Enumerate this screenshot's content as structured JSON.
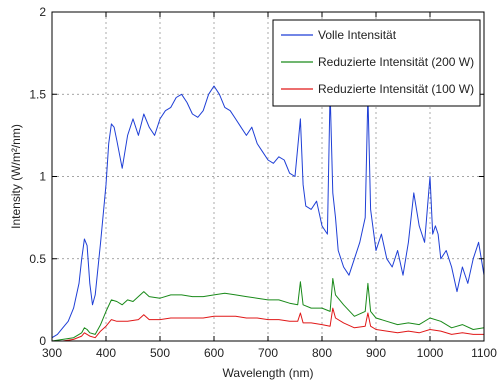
{
  "chart_data": {
    "type": "line",
    "title": "",
    "xlabel": "Wavelength (nm)",
    "ylabel": "Intensity (W/m²/nm)",
    "xlim": [
      300,
      1100
    ],
    "ylim": [
      0,
      2
    ],
    "x_ticks": [
      300,
      400,
      500,
      600,
      700,
      800,
      900,
      1000,
      1100
    ],
    "y_ticks": [
      0,
      0.5,
      1,
      1.5,
      2
    ],
    "y_tick_labels": [
      "0",
      "0.5",
      "1",
      "1.5",
      "2"
    ],
    "grid": true,
    "legend_position": "top-right",
    "series": [
      {
        "name": "Volle Intensität",
        "color": "#1f3fd6",
        "x": [
          300,
          310,
          320,
          330,
          340,
          350,
          355,
          360,
          365,
          370,
          375,
          380,
          390,
          400,
          405,
          410,
          415,
          420,
          430,
          440,
          450,
          460,
          470,
          480,
          490,
          500,
          510,
          520,
          530,
          540,
          550,
          560,
          570,
          580,
          590,
          600,
          610,
          620,
          630,
          640,
          650,
          660,
          670,
          680,
          690,
          700,
          710,
          720,
          730,
          740,
          750,
          760,
          765,
          770,
          780,
          790,
          800,
          810,
          815,
          820,
          825,
          830,
          840,
          850,
          860,
          870,
          880,
          885,
          890,
          900,
          910,
          920,
          930,
          940,
          950,
          960,
          970,
          980,
          990,
          1000,
          1005,
          1010,
          1015,
          1020,
          1030,
          1040,
          1050,
          1060,
          1070,
          1080,
          1090,
          1100
        ],
        "y": [
          0.02,
          0.04,
          0.08,
          0.12,
          0.2,
          0.35,
          0.5,
          0.62,
          0.58,
          0.35,
          0.22,
          0.28,
          0.6,
          0.95,
          1.2,
          1.32,
          1.3,
          1.22,
          1.05,
          1.25,
          1.35,
          1.25,
          1.38,
          1.3,
          1.25,
          1.35,
          1.4,
          1.42,
          1.48,
          1.5,
          1.45,
          1.38,
          1.36,
          1.4,
          1.5,
          1.55,
          1.5,
          1.42,
          1.4,
          1.35,
          1.3,
          1.25,
          1.3,
          1.2,
          1.15,
          1.1,
          1.08,
          1.12,
          1.1,
          1.02,
          1.0,
          1.35,
          0.95,
          0.82,
          0.8,
          0.85,
          0.7,
          0.65,
          1.52,
          0.9,
          0.75,
          0.55,
          0.45,
          0.4,
          0.5,
          0.6,
          0.75,
          1.5,
          0.8,
          0.55,
          0.65,
          0.5,
          0.45,
          0.55,
          0.4,
          0.6,
          0.9,
          0.7,
          0.6,
          1.0,
          0.65,
          0.7,
          0.65,
          0.5,
          0.55,
          0.45,
          0.3,
          0.45,
          0.35,
          0.5,
          0.6,
          0.4
        ]
      },
      {
        "name": "Reduzierte Intensität (200 W)",
        "color": "#1a8a1a",
        "x": [
          300,
          320,
          340,
          355,
          360,
          365,
          370,
          380,
          390,
          400,
          410,
          420,
          430,
          440,
          450,
          470,
          480,
          500,
          520,
          540,
          560,
          580,
          600,
          620,
          640,
          660,
          680,
          700,
          720,
          740,
          755,
          760,
          765,
          780,
          800,
          815,
          820,
          825,
          840,
          860,
          880,
          885,
          890,
          900,
          920,
          940,
          960,
          980,
          1000,
          1020,
          1040,
          1060,
          1080,
          1100
        ],
        "y": [
          0.0,
          0.01,
          0.02,
          0.05,
          0.08,
          0.07,
          0.05,
          0.04,
          0.1,
          0.18,
          0.25,
          0.24,
          0.22,
          0.25,
          0.24,
          0.3,
          0.27,
          0.26,
          0.28,
          0.28,
          0.27,
          0.27,
          0.28,
          0.29,
          0.28,
          0.27,
          0.26,
          0.25,
          0.25,
          0.23,
          0.22,
          0.36,
          0.22,
          0.2,
          0.2,
          0.18,
          0.38,
          0.28,
          0.22,
          0.15,
          0.18,
          0.35,
          0.18,
          0.14,
          0.12,
          0.1,
          0.11,
          0.1,
          0.14,
          0.12,
          0.08,
          0.1,
          0.07,
          0.08
        ]
      },
      {
        "name": "Reduzierte Intensität (100 W)",
        "color": "#e01818",
        "x": [
          300,
          320,
          340,
          355,
          360,
          365,
          370,
          380,
          390,
          400,
          410,
          420,
          440,
          460,
          470,
          480,
          500,
          520,
          540,
          560,
          580,
          600,
          620,
          640,
          660,
          680,
          700,
          720,
          740,
          755,
          760,
          765,
          780,
          800,
          815,
          820,
          825,
          840,
          860,
          880,
          885,
          890,
          900,
          920,
          940,
          960,
          980,
          1000,
          1020,
          1040,
          1060,
          1080,
          1100
        ],
        "y": [
          0.0,
          0.0,
          0.01,
          0.03,
          0.05,
          0.04,
          0.03,
          0.02,
          0.06,
          0.09,
          0.13,
          0.12,
          0.12,
          0.13,
          0.16,
          0.13,
          0.13,
          0.14,
          0.14,
          0.14,
          0.14,
          0.15,
          0.15,
          0.15,
          0.14,
          0.14,
          0.13,
          0.13,
          0.12,
          0.12,
          0.17,
          0.11,
          0.11,
          0.1,
          0.09,
          0.2,
          0.14,
          0.11,
          0.08,
          0.09,
          0.17,
          0.09,
          0.07,
          0.06,
          0.05,
          0.06,
          0.05,
          0.07,
          0.06,
          0.04,
          0.05,
          0.04,
          0.04
        ]
      }
    ]
  }
}
